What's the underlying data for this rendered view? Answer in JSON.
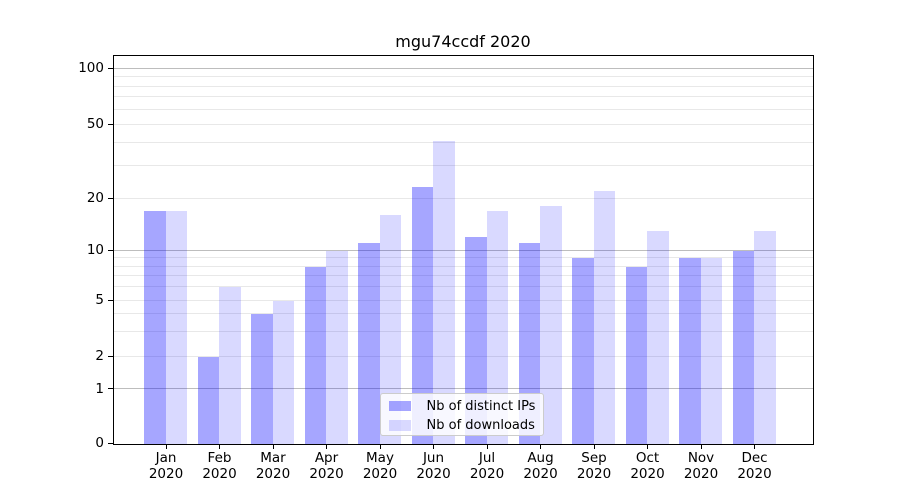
{
  "figure": {
    "title": "mgu74ccdf 2020"
  },
  "chart_data": {
    "type": "bar",
    "title": "mgu74ccdf 2020",
    "categories": [
      "Jan 2020",
      "Feb 2020",
      "Mar 2020",
      "Apr 2020",
      "May 2020",
      "Jun 2020",
      "Jul 2020",
      "Aug 2020",
      "Sep 2020",
      "Oct 2020",
      "Nov 2020",
      "Dec 2020"
    ],
    "series": [
      {
        "name": "Nb of distinct IPs",
        "color": "rgba(0,0,255,0.35)",
        "values": [
          17,
          2,
          4,
          8,
          11,
          23,
          12,
          11,
          9,
          8,
          9,
          10
        ]
      },
      {
        "name": "Nb of downloads",
        "color": "rgba(0,0,255,0.15)",
        "values": [
          17,
          6,
          5,
          10,
          16,
          41,
          17,
          18,
          22,
          13,
          9,
          13
        ]
      }
    ],
    "yscale": "symlog",
    "ylim": [
      0,
      110
    ],
    "y_ticks": [
      0,
      1,
      2,
      5,
      10,
      20,
      50,
      100
    ],
    "y_major_gridlines": [
      1,
      10,
      100
    ],
    "y_minor_gridlines": [
      2,
      3,
      4,
      5,
      6,
      7,
      8,
      9,
      20,
      30,
      40,
      50,
      60,
      70,
      80,
      90
    ],
    "legend": {
      "location": "lower center",
      "entries": [
        "Nb of distinct IPs",
        "Nb of downloads"
      ]
    },
    "colors": {
      "grid_major": "#bdbdbd",
      "grid_minor": "#e8e8e8",
      "axis": "#000000",
      "text": "#000000"
    }
  }
}
